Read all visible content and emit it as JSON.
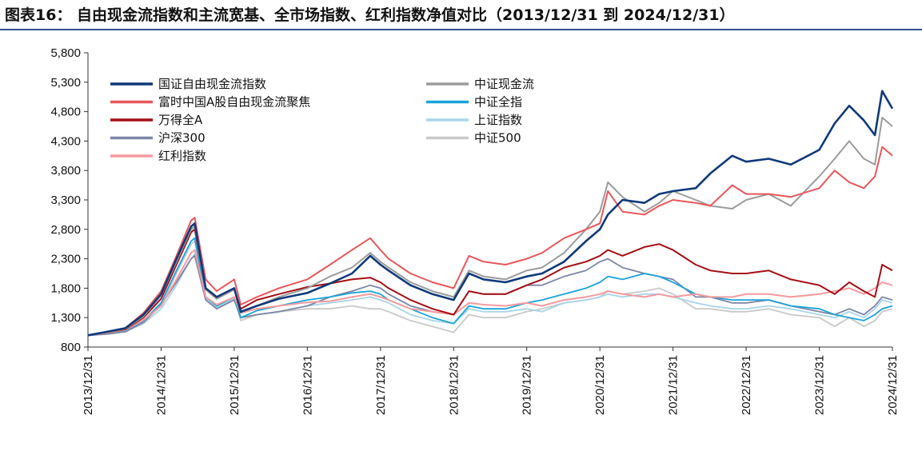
{
  "chart_data": {
    "type": "line",
    "title": "图表16：  自由现金流指数和主流宽基、全市场指数、红利指数净值对比（2013/12/31 到 2024/12/31）",
    "xlabel": "",
    "ylabel": "",
    "ylim": [
      800,
      5800
    ],
    "yticks": [
      "800",
      "1,300",
      "1,800",
      "2,300",
      "2,800",
      "3,300",
      "3,800",
      "4,300",
      "4,800",
      "5,300",
      "5,800"
    ],
    "ytick_values": [
      800,
      1300,
      1800,
      2300,
      2800,
      3300,
      3800,
      4300,
      4800,
      5300,
      5800
    ],
    "xticks": [
      "2013/12/31",
      "2014/12/31",
      "2015/12/31",
      "2016/12/31",
      "2017/12/31",
      "2018/12/31",
      "2019/12/31",
      "2020/12/31",
      "2021/12/31",
      "2022/12/31",
      "2023/12/31",
      "2024/12/31"
    ],
    "x": [
      2013.99,
      2014.25,
      2014.5,
      2014.75,
      2014.99,
      2015.2,
      2015.4,
      2015.45,
      2015.6,
      2015.75,
      2015.99,
      2016.08,
      2016.3,
      2016.6,
      2016.99,
      2017.3,
      2017.6,
      2017.85,
      2017.99,
      2018.1,
      2018.4,
      2018.7,
      2018.99,
      2019.2,
      2019.4,
      2019.7,
      2019.99,
      2020.2,
      2020.5,
      2020.8,
      2020.99,
      2021.1,
      2021.3,
      2021.6,
      2021.8,
      2021.99,
      2022.3,
      2022.5,
      2022.8,
      2022.99,
      2023.3,
      2023.6,
      2023.99,
      2024.2,
      2024.4,
      2024.6,
      2024.75,
      2024.85,
      2024.99
    ],
    "series": [
      {
        "name": "国证自由现金流指数",
        "color": "#0e3a7a",
        "width": 2.6,
        "values": [
          1000,
          1060,
          1120,
          1350,
          1700,
          2300,
          2850,
          2900,
          1800,
          1650,
          1800,
          1400,
          1500,
          1620,
          1720,
          1880,
          2050,
          2350,
          2200,
          2100,
          1850,
          1700,
          1600,
          2050,
          1950,
          1900,
          2000,
          2050,
          2250,
          2600,
          2800,
          3050,
          3300,
          3250,
          3400,
          3450,
          3500,
          3750,
          4050,
          3950,
          4000,
          3900,
          4150,
          4600,
          4900,
          4650,
          4400,
          5150,
          4850
        ]
      },
      {
        "name": "中证现金流",
        "color": "#9b9b9b",
        "width": 2,
        "values": [
          1000,
          1050,
          1110,
          1320,
          1680,
          2250,
          2800,
          2850,
          1780,
          1620,
          1780,
          1380,
          1500,
          1650,
          1800,
          2000,
          2150,
          2400,
          2250,
          2150,
          1900,
          1750,
          1650,
          2100,
          2000,
          1950,
          2100,
          2150,
          2400,
          2800,
          3100,
          3600,
          3350,
          3100,
          3250,
          3450,
          3300,
          3200,
          3150,
          3300,
          3400,
          3200,
          3700,
          4000,
          4300,
          4000,
          3900,
          4700,
          4550
        ]
      },
      {
        "name": "富时中国A股自由现金流聚焦",
        "color": "#e8575a",
        "width": 2,
        "values": [
          1000,
          1060,
          1120,
          1380,
          1750,
          2350,
          2950,
          3000,
          1950,
          1750,
          1950,
          1520,
          1650,
          1800,
          1950,
          2200,
          2450,
          2650,
          2450,
          2300,
          2050,
          1900,
          1800,
          2350,
          2250,
          2200,
          2300,
          2400,
          2650,
          2800,
          2900,
          3450,
          3100,
          3050,
          3200,
          3300,
          3250,
          3200,
          3550,
          3400,
          3400,
          3350,
          3500,
          3800,
          3600,
          3500,
          3700,
          4200,
          4050
        ]
      },
      {
        "name": "中证全指",
        "color": "#1aa3d9",
        "width": 1.8,
        "values": [
          1000,
          1040,
          1080,
          1250,
          1550,
          2100,
          2600,
          2650,
          1650,
          1500,
          1650,
          1300,
          1420,
          1500,
          1600,
          1650,
          1720,
          1750,
          1700,
          1600,
          1450,
          1300,
          1200,
          1500,
          1450,
          1450,
          1550,
          1600,
          1700,
          1800,
          1900,
          2000,
          1950,
          2050,
          2000,
          1900,
          1700,
          1650,
          1600,
          1600,
          1600,
          1500,
          1450,
          1350,
          1300,
          1250,
          1350,
          1450,
          1500
        ]
      },
      {
        "name": "万得全A",
        "color": "#a50f15",
        "width": 2,
        "values": [
          1000,
          1050,
          1100,
          1300,
          1620,
          2200,
          2750,
          2800,
          1780,
          1620,
          1780,
          1450,
          1600,
          1700,
          1820,
          1880,
          1950,
          1980,
          1900,
          1800,
          1600,
          1450,
          1350,
          1750,
          1700,
          1700,
          1850,
          1950,
          2150,
          2250,
          2350,
          2450,
          2350,
          2500,
          2550,
          2450,
          2200,
          2100,
          2050,
          2050,
          2100,
          1950,
          1850,
          1700,
          1900,
          1750,
          1650,
          2200,
          2100
        ]
      },
      {
        "name": "上证指数",
        "color": "#a8d5e8",
        "width": 1.8,
        "values": [
          1000,
          1020,
          1060,
          1200,
          1450,
          1850,
          2300,
          2380,
          1620,
          1480,
          1620,
          1300,
          1350,
          1400,
          1500,
          1550,
          1600,
          1650,
          1600,
          1550,
          1350,
          1250,
          1200,
          1450,
          1400,
          1400,
          1450,
          1400,
          1550,
          1600,
          1650,
          1700,
          1650,
          1700,
          1700,
          1650,
          1550,
          1500,
          1450,
          1450,
          1500,
          1450,
          1350,
          1300,
          1400,
          1300,
          1450,
          1600,
          1550
        ]
      },
      {
        "name": "沪深300",
        "color": "#7d86a6",
        "width": 1.8,
        "values": [
          1000,
          1020,
          1060,
          1220,
          1520,
          1900,
          2300,
          2350,
          1600,
          1450,
          1600,
          1300,
          1350,
          1400,
          1500,
          1650,
          1750,
          1850,
          1800,
          1700,
          1500,
          1400,
          1350,
          1750,
          1700,
          1700,
          1850,
          1850,
          2000,
          2100,
          2250,
          2300,
          2150,
          2050,
          2000,
          1950,
          1650,
          1650,
          1550,
          1550,
          1600,
          1500,
          1400,
          1350,
          1450,
          1350,
          1500,
          1650,
          1600
        ]
      },
      {
        "name": "中证500",
        "color": "#c9c9c9",
        "width": 1.8,
        "values": [
          1000,
          1030,
          1080,
          1250,
          1500,
          2050,
          2550,
          2600,
          1650,
          1450,
          1650,
          1250,
          1350,
          1400,
          1450,
          1450,
          1500,
          1450,
          1450,
          1400,
          1250,
          1150,
          1050,
          1350,
          1300,
          1300,
          1400,
          1450,
          1550,
          1600,
          1650,
          1750,
          1700,
          1750,
          1800,
          1700,
          1450,
          1450,
          1400,
          1400,
          1450,
          1350,
          1300,
          1150,
          1300,
          1150,
          1250,
          1400,
          1450
        ]
      },
      {
        "name": "红利指数",
        "color": "#f59a9e",
        "width": 2,
        "values": [
          1000,
          1040,
          1090,
          1260,
          1500,
          1950,
          2400,
          2450,
          1650,
          1520,
          1650,
          1380,
          1450,
          1500,
          1560,
          1580,
          1650,
          1700,
          1650,
          1600,
          1450,
          1400,
          1350,
          1550,
          1520,
          1500,
          1550,
          1500,
          1600,
          1650,
          1700,
          1750,
          1700,
          1650,
          1700,
          1650,
          1700,
          1650,
          1650,
          1700,
          1700,
          1650,
          1700,
          1750,
          1800,
          1700,
          1800,
          1900,
          1850
        ]
      }
    ],
    "legend": {
      "placement": "top-left",
      "left_column": [
        "国证自由现金流指数",
        "富时中国A股自由现金流聚焦",
        "万得全A",
        "沪深300",
        "红利指数"
      ],
      "right_column": [
        "中证现金流",
        "中证全指",
        "上证指数",
        "中证500"
      ]
    },
    "grid": false
  }
}
